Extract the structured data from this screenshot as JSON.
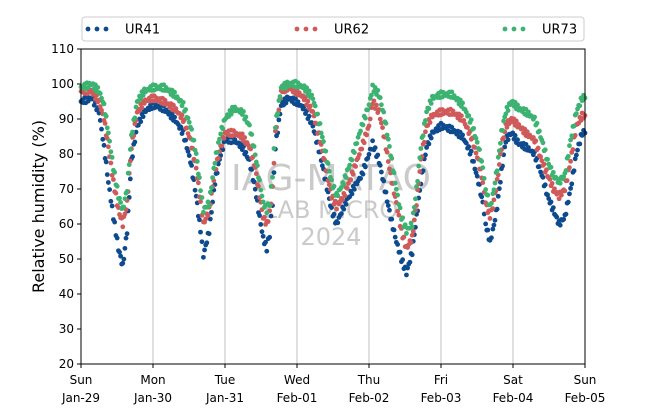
{
  "chart_data": {
    "type": "scatter",
    "xlabel": "",
    "ylabel": "Relative humidity (%)",
    "ylim": [
      20,
      110
    ],
    "yticks": [
      20,
      30,
      40,
      50,
      60,
      70,
      80,
      90,
      100,
      110
    ],
    "xlim": [
      "2023-01-29",
      "2023-02-05"
    ],
    "xticks": [
      {
        "day": "Sun",
        "date": "Jan-29"
      },
      {
        "day": "Mon",
        "date": "Jan-30"
      },
      {
        "day": "Tue",
        "date": "Jan-31"
      },
      {
        "day": "Wed",
        "date": "Feb-01"
      },
      {
        "day": "Thu",
        "date": "Feb-02"
      },
      {
        "day": "Fri",
        "date": "Feb-03"
      },
      {
        "day": "Sat",
        "date": "Feb-04"
      },
      {
        "day": "Sun",
        "date": "Feb-05"
      }
    ],
    "grid": "vertical",
    "legend_position": "top",
    "watermark": [
      "IAG-MATAO",
      "LAB MICRO",
      "2024"
    ],
    "series": [
      {
        "name": "UR41",
        "color": "#0d4a8e",
        "points": [
          [
            0.0,
            95
          ],
          [
            0.15,
            96
          ],
          [
            0.25,
            92
          ],
          [
            0.32,
            82
          ],
          [
            0.38,
            72
          ],
          [
            0.45,
            62
          ],
          [
            0.52,
            53
          ],
          [
            0.58,
            48
          ],
          [
            0.64,
            58
          ],
          [
            0.7,
            78
          ],
          [
            0.78,
            88
          ],
          [
            0.88,
            92
          ],
          [
            1.0,
            94
          ],
          [
            1.15,
            93
          ],
          [
            1.3,
            90
          ],
          [
            1.42,
            86
          ],
          [
            1.52,
            78
          ],
          [
            1.6,
            68
          ],
          [
            1.66,
            58
          ],
          [
            1.7,
            51
          ],
          [
            1.78,
            58
          ],
          [
            1.86,
            72
          ],
          [
            1.94,
            80
          ],
          [
            2.0,
            84
          ],
          [
            2.12,
            84
          ],
          [
            2.24,
            82
          ],
          [
            2.34,
            78
          ],
          [
            2.42,
            70
          ],
          [
            2.48,
            62
          ],
          [
            2.53,
            56
          ],
          [
            2.58,
            53
          ],
          [
            2.62,
            57
          ],
          [
            2.66,
            66
          ],
          [
            2.7,
            82
          ],
          [
            2.78,
            94
          ],
          [
            2.88,
            96
          ],
          [
            2.98,
            95
          ],
          [
            3.1,
            93
          ],
          [
            3.22,
            88
          ],
          [
            3.32,
            80
          ],
          [
            3.4,
            72
          ],
          [
            3.48,
            64
          ],
          [
            3.55,
            60
          ],
          [
            3.65,
            65
          ],
          [
            3.78,
            70
          ],
          [
            3.9,
            74
          ],
          [
            4.0,
            80
          ],
          [
            4.05,
            83
          ],
          [
            4.14,
            78
          ],
          [
            4.22,
            70
          ],
          [
            4.3,
            62
          ],
          [
            4.38,
            55
          ],
          [
            4.45,
            50
          ],
          [
            4.52,
            46
          ],
          [
            4.6,
            52
          ],
          [
            4.66,
            62
          ],
          [
            4.72,
            72
          ],
          [
            4.8,
            82
          ],
          [
            4.88,
            86
          ],
          [
            5.0,
            88
          ],
          [
            5.15,
            87
          ],
          [
            5.3,
            85
          ],
          [
            5.42,
            80
          ],
          [
            5.52,
            72
          ],
          [
            5.58,
            66
          ],
          [
            5.62,
            60
          ],
          [
            5.68,
            55
          ],
          [
            5.72,
            58
          ],
          [
            5.78,
            65
          ],
          [
            5.84,
            75
          ],
          [
            5.9,
            84
          ],
          [
            5.98,
            86
          ],
          [
            6.08,
            83
          ],
          [
            6.18,
            82
          ],
          [
            6.3,
            80
          ],
          [
            6.4,
            74
          ],
          [
            6.48,
            68
          ],
          [
            6.56,
            64
          ],
          [
            6.64,
            60
          ],
          [
            6.72,
            62
          ],
          [
            6.8,
            70
          ],
          [
            6.88,
            80
          ],
          [
            6.96,
            86
          ],
          [
            7.0,
            86
          ]
        ]
      },
      {
        "name": "UR62",
        "color": "#d05a5a",
        "points": [
          [
            0.0,
            98
          ],
          [
            0.15,
            98
          ],
          [
            0.25,
            95
          ],
          [
            0.32,
            90
          ],
          [
            0.38,
            82
          ],
          [
            0.45,
            72
          ],
          [
            0.52,
            64
          ],
          [
            0.58,
            60
          ],
          [
            0.64,
            66
          ],
          [
            0.7,
            82
          ],
          [
            0.78,
            92
          ],
          [
            0.88,
            95
          ],
          [
            1.0,
            96
          ],
          [
            1.15,
            95
          ],
          [
            1.3,
            93
          ],
          [
            1.42,
            90
          ],
          [
            1.52,
            84
          ],
          [
            1.6,
            76
          ],
          [
            1.66,
            66
          ],
          [
            1.7,
            60
          ],
          [
            1.78,
            64
          ],
          [
            1.86,
            75
          ],
          [
            1.94,
            82
          ],
          [
            2.0,
            86
          ],
          [
            2.12,
            86
          ],
          [
            2.24,
            85
          ],
          [
            2.34,
            82
          ],
          [
            2.42,
            76
          ],
          [
            2.48,
            68
          ],
          [
            2.53,
            62
          ],
          [
            2.58,
            60
          ],
          [
            2.62,
            63
          ],
          [
            2.66,
            70
          ],
          [
            2.7,
            86
          ],
          [
            2.78,
            98
          ],
          [
            2.88,
            99
          ],
          [
            2.98,
            98
          ],
          [
            3.1,
            96
          ],
          [
            3.22,
            92
          ],
          [
            3.32,
            84
          ],
          [
            3.4,
            76
          ],
          [
            3.48,
            68
          ],
          [
            3.55,
            65
          ],
          [
            3.65,
            68
          ],
          [
            3.78,
            75
          ],
          [
            3.9,
            82
          ],
          [
            4.0,
            88
          ],
          [
            4.05,
            95
          ],
          [
            4.14,
            92
          ],
          [
            4.22,
            84
          ],
          [
            4.3,
            74
          ],
          [
            4.38,
            66
          ],
          [
            4.45,
            58
          ],
          [
            4.52,
            53
          ],
          [
            4.6,
            56
          ],
          [
            4.66,
            66
          ],
          [
            4.72,
            78
          ],
          [
            4.8,
            88
          ],
          [
            4.88,
            91
          ],
          [
            5.0,
            92
          ],
          [
            5.15,
            92
          ],
          [
            5.3,
            90
          ],
          [
            5.42,
            85
          ],
          [
            5.52,
            78
          ],
          [
            5.58,
            72
          ],
          [
            5.62,
            66
          ],
          [
            5.68,
            62
          ],
          [
            5.72,
            65
          ],
          [
            5.78,
            72
          ],
          [
            5.84,
            82
          ],
          [
            5.9,
            88
          ],
          [
            5.98,
            90
          ],
          [
            6.08,
            88
          ],
          [
            6.18,
            86
          ],
          [
            6.3,
            84
          ],
          [
            6.4,
            78
          ],
          [
            6.48,
            74
          ],
          [
            6.56,
            70
          ],
          [
            6.64,
            68
          ],
          [
            6.72,
            70
          ],
          [
            6.8,
            78
          ],
          [
            6.88,
            88
          ],
          [
            6.96,
            91
          ],
          [
            7.0,
            91
          ]
        ]
      },
      {
        "name": "UR73",
        "color": "#3cb371",
        "points": [
          [
            0.0,
            99
          ],
          [
            0.15,
            100
          ],
          [
            0.25,
            98
          ],
          [
            0.32,
            94
          ],
          [
            0.38,
            86
          ],
          [
            0.45,
            76
          ],
          [
            0.52,
            68
          ],
          [
            0.58,
            64
          ],
          [
            0.64,
            70
          ],
          [
            0.7,
            85
          ],
          [
            0.78,
            95
          ],
          [
            0.88,
            98
          ],
          [
            1.0,
            99
          ],
          [
            1.15,
            99
          ],
          [
            1.3,
            97
          ],
          [
            1.42,
            94
          ],
          [
            1.52,
            88
          ],
          [
            1.6,
            80
          ],
          [
            1.66,
            70
          ],
          [
            1.7,
            64
          ],
          [
            1.78,
            66
          ],
          [
            1.86,
            78
          ],
          [
            1.94,
            86
          ],
          [
            2.0,
            90
          ],
          [
            2.12,
            93
          ],
          [
            2.24,
            92
          ],
          [
            2.34,
            88
          ],
          [
            2.42,
            80
          ],
          [
            2.48,
            72
          ],
          [
            2.53,
            66
          ],
          [
            2.58,
            64
          ],
          [
            2.62,
            66
          ],
          [
            2.66,
            74
          ],
          [
            2.7,
            88
          ],
          [
            2.78,
            99
          ],
          [
            2.88,
            100
          ],
          [
            2.98,
            100
          ],
          [
            3.1,
            99
          ],
          [
            3.22,
            96
          ],
          [
            3.32,
            88
          ],
          [
            3.4,
            80
          ],
          [
            3.48,
            72
          ],
          [
            3.55,
            68
          ],
          [
            3.65,
            72
          ],
          [
            3.78,
            80
          ],
          [
            3.9,
            88
          ],
          [
            4.0,
            94
          ],
          [
            4.05,
            99
          ],
          [
            4.14,
            97
          ],
          [
            4.22,
            90
          ],
          [
            4.3,
            80
          ],
          [
            4.38,
            70
          ],
          [
            4.45,
            62
          ],
          [
            4.52,
            58
          ],
          [
            4.6,
            60
          ],
          [
            4.66,
            70
          ],
          [
            4.72,
            82
          ],
          [
            4.8,
            92
          ],
          [
            4.88,
            96
          ],
          [
            5.0,
            97
          ],
          [
            5.15,
            97
          ],
          [
            5.3,
            94
          ],
          [
            5.42,
            89
          ],
          [
            5.52,
            82
          ],
          [
            5.58,
            76
          ],
          [
            5.62,
            70
          ],
          [
            5.68,
            65
          ],
          [
            5.72,
            68
          ],
          [
            5.78,
            76
          ],
          [
            5.84,
            86
          ],
          [
            5.9,
            92
          ],
          [
            5.98,
            95
          ],
          [
            6.08,
            93
          ],
          [
            6.18,
            92
          ],
          [
            6.3,
            90
          ],
          [
            6.4,
            84
          ],
          [
            6.48,
            78
          ],
          [
            6.56,
            74
          ],
          [
            6.64,
            72
          ],
          [
            6.72,
            74
          ],
          [
            6.8,
            84
          ],
          [
            6.88,
            92
          ],
          [
            6.96,
            96
          ],
          [
            7.0,
            96
          ]
        ]
      }
    ]
  }
}
